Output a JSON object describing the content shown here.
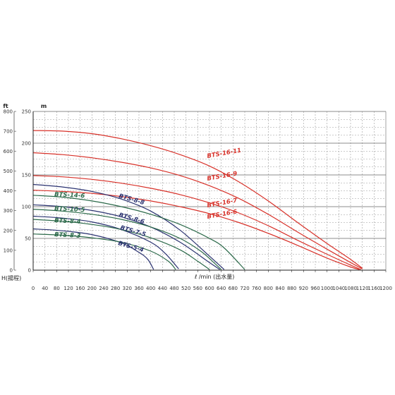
{
  "chart_data": {
    "type": "line",
    "title": "",
    "xlabel": "ℓ /min (出水量)",
    "ylabel": "H(揚程)",
    "y_unit_m": "m",
    "y_unit_ft": "ft",
    "xlim": [
      0,
      1200
    ],
    "ylim_m": [
      0,
      250
    ],
    "ylim_ft": [
      0,
      800
    ],
    "grid": true,
    "x_ticks": [
      "0",
      "40",
      "80",
      "120",
      "160",
      "200",
      "240",
      "280",
      "320",
      "360",
      "400",
      "440",
      "480",
      "520",
      "560",
      "600",
      "640",
      "680",
      "720",
      "760",
      "800",
      "840",
      "880",
      "920",
      "960",
      "1000",
      "1040",
      "1080",
      "1120",
      "1160",
      "1200"
    ],
    "y_ticks_m": [
      "0",
      "50",
      "100",
      "150",
      "200",
      "250"
    ],
    "y_ticks_ft": [
      "0",
      "100",
      "200",
      "300",
      "400",
      "500",
      "600",
      "700",
      "800"
    ],
    "series": [
      {
        "name": "BTS-16-11",
        "color": "#d8322a",
        "x": [
          0,
          100,
          200,
          300,
          400,
          500,
          600,
          700,
          800,
          900,
          1000,
          1080,
          1120
        ],
        "y": [
          220,
          219,
          215,
          207,
          196,
          182,
          164,
          139,
          109,
          75,
          42,
          17,
          3
        ]
      },
      {
        "name": "BTS-16-9",
        "color": "#d8322a",
        "x": [
          0,
          100,
          200,
          300,
          400,
          500,
          600,
          700,
          800,
          900,
          1000,
          1080,
          1120
        ],
        "y": [
          185,
          182,
          177,
          170,
          161,
          149,
          133,
          113,
          88,
          60,
          33,
          12,
          2
        ]
      },
      {
        "name": "BTS-16-7",
        "color": "#d8322a",
        "x": [
          0,
          100,
          200,
          300,
          400,
          500,
          600,
          700,
          800,
          900,
          1000,
          1080,
          1115
        ],
        "y": [
          149,
          147,
          143,
          137,
          129,
          119,
          106,
          90,
          70,
          47,
          25,
          8,
          1
        ]
      },
      {
        "name": "BTS-16-6",
        "color": "#d8322a",
        "x": [
          0,
          100,
          200,
          300,
          400,
          500,
          600,
          700,
          800,
          900,
          1000,
          1080,
          1110
        ],
        "y": [
          126,
          124,
          121,
          116,
          109,
          100,
          89,
          75,
          58,
          39,
          19,
          5,
          1
        ]
      },
      {
        "name": "BTS-8-8",
        "color": "#2a3270",
        "x": [
          0,
          100,
          200,
          300,
          400,
          500,
          600,
          650
        ],
        "y": [
          135,
          131,
          124,
          112,
          93,
          63,
          22,
          1
        ]
      },
      {
        "name": "BTS-8-6",
        "color": "#2a3270",
        "x": [
          0,
          100,
          200,
          300,
          400,
          500,
          600,
          635
        ],
        "y": [
          103,
          100,
          94,
          84,
          68,
          44,
          12,
          1
        ]
      },
      {
        "name": "BTS-7-5",
        "color": "#2a3270",
        "x": [
          0,
          100,
          200,
          300,
          400,
          450,
          495
        ],
        "y": [
          85,
          82,
          76,
          64,
          44,
          26,
          2
        ]
      },
      {
        "name": "BTS-5-4",
        "color": "#2a3270",
        "x": [
          0,
          100,
          200,
          300,
          360,
          390,
          410
        ],
        "y": [
          65,
          62,
          56,
          43,
          28,
          17,
          1
        ]
      },
      {
        "name": "BTS-14-6",
        "color": "#2c6a4a",
        "x": [
          0,
          100,
          200,
          300,
          400,
          500,
          600,
          650,
          720
        ],
        "y": [
          118,
          115,
          109,
          100,
          88,
          72,
          50,
          35,
          1
        ]
      },
      {
        "name": "BTS-10-5",
        "color": "#2c6a4a",
        "x": [
          0,
          100,
          200,
          300,
          400,
          500,
          570,
          610,
          640
        ],
        "y": [
          96,
          93,
          88,
          80,
          68,
          50,
          30,
          14,
          1
        ]
      },
      {
        "name": "BTS-8-4",
        "color": "#2c6a4a",
        "x": [
          0,
          100,
          200,
          300,
          400,
          500,
          560,
          600
        ],
        "y": [
          80,
          77,
          72,
          64,
          51,
          32,
          14,
          1
        ]
      },
      {
        "name": "BTS-8-3",
        "color": "#2c6a4a",
        "x": [
          0,
          100,
          200,
          300,
          400,
          460,
          485
        ],
        "y": [
          57,
          55,
          51,
          44,
          30,
          14,
          1
        ]
      }
    ]
  }
}
